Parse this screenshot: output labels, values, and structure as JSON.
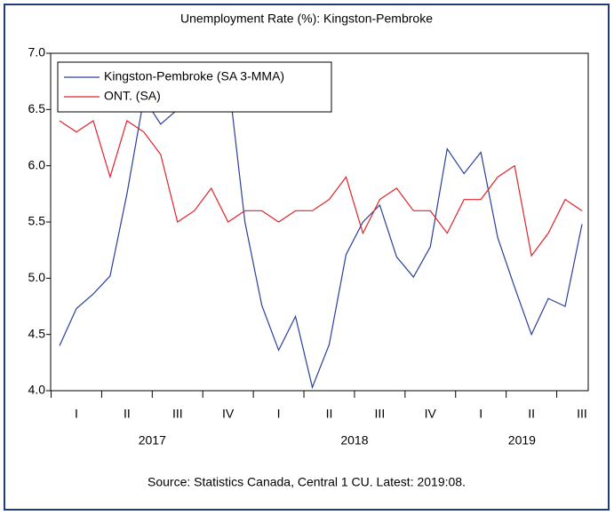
{
  "chart_data": {
    "type": "line",
    "title": "Unemployment Rate (%): Kingston-Pembroke",
    "source": "Source: Statistics Canada, Central 1 CU. Latest: 2019:08.",
    "categories": [
      null,
      "I",
      null,
      null,
      "II",
      null,
      null,
      "III",
      null,
      null,
      "IV",
      null,
      null,
      "I",
      null,
      null,
      "II",
      null,
      null,
      "III",
      null,
      null,
      "IV",
      null,
      null,
      "I",
      null,
      null,
      "II",
      null,
      null,
      "III"
    ],
    "x_groups": [
      "2017",
      "2018",
      "2019"
    ],
    "series": [
      {
        "name": "Kingston-Pembroke (SA 3-MMA)",
        "color": "#2b3f9a",
        "values": [
          4.4,
          4.73,
          4.86,
          5.02,
          5.75,
          6.6,
          6.37,
          6.5,
          6.7,
          6.9,
          6.8,
          5.5,
          4.76,
          4.36,
          4.66,
          4.03,
          4.41,
          5.21,
          5.5,
          5.65,
          5.19,
          5.01,
          5.28,
          6.15,
          5.93,
          6.12,
          5.36,
          4.92,
          4.5,
          4.82,
          4.75,
          5.48
        ]
      },
      {
        "name": "ONT. (SA)",
        "color": "#e0242b",
        "values": [
          6.4,
          6.3,
          6.4,
          5.9,
          6.4,
          6.3,
          6.1,
          5.5,
          5.6,
          5.8,
          5.5,
          5.6,
          5.6,
          5.5,
          5.6,
          5.6,
          5.7,
          5.9,
          5.4,
          5.7,
          5.8,
          5.6,
          5.6,
          5.4,
          5.7,
          5.7,
          5.9,
          6.0,
          5.2,
          5.4,
          5.7,
          5.6
        ]
      }
    ],
    "ylim": [
      4,
      7
    ],
    "yticks": [
      {
        "value": 4,
        "label": "4.0"
      },
      4.5,
      {
        "value": 5,
        "label": "5.0"
      },
      5.5,
      {
        "value": 6,
        "label": "6.0"
      },
      6.5,
      {
        "value": 7,
        "label": "7.0"
      }
    ],
    "grid": false,
    "legend": "upper-left"
  }
}
